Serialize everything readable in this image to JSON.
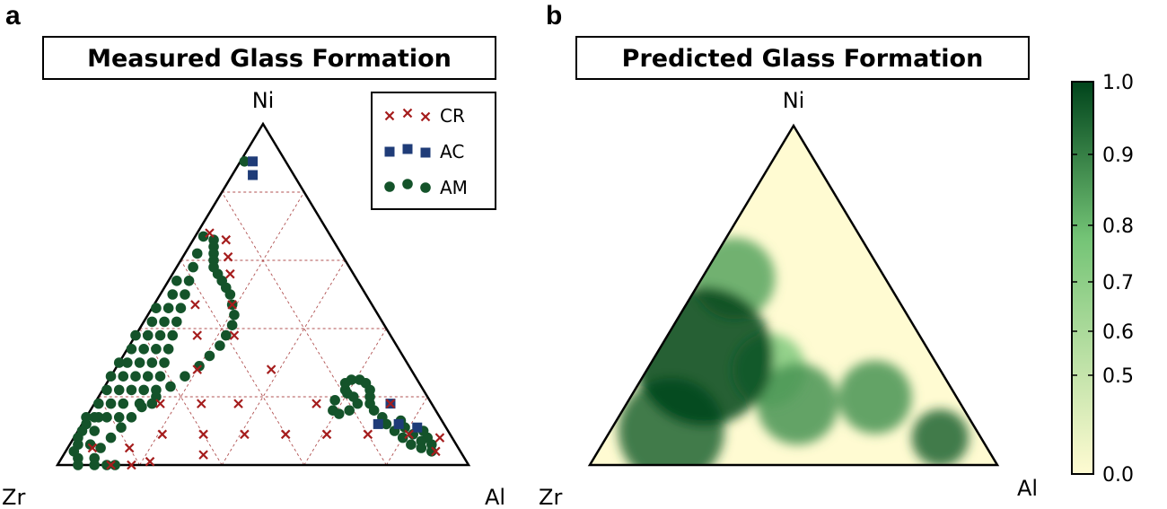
{
  "panels": [
    {
      "letter": "a",
      "title": "Measured Glass Formation"
    },
    {
      "letter": "b",
      "title": "Predicted Glass Formation"
    }
  ],
  "vertices": {
    "top": "Ni",
    "left": "Zr",
    "right": "Al"
  },
  "colors": {
    "CR": "#a51d1d",
    "AC": "#1f3c78",
    "AM": "#14532a",
    "scale_low": "#fffbd2",
    "scale_mid": "#74c476",
    "scale_high": "#00441b"
  },
  "chart_data": [
    {
      "type": "scatter",
      "coordinate_system": "ternary",
      "components": [
        "Ni",
        "Al",
        "Zr"
      ],
      "title": "Measured Glass Formation",
      "legend": {
        "placement": "top-right",
        "entries": [
          "CR",
          "AC",
          "AM"
        ]
      },
      "grid": true,
      "series": [
        {
          "name": "CR",
          "marker": "x",
          "points": [
            {
              "Ni": 0.68,
              "Al": 0.03
            },
            {
              "Ni": 0.66,
              "Al": 0.08
            },
            {
              "Ni": 0.61,
              "Al": 0.11
            },
            {
              "Ni": 0.56,
              "Al": 0.14
            },
            {
              "Ni": 0.47,
              "Al": 0.1
            },
            {
              "Ni": 0.47,
              "Al": 0.19
            },
            {
              "Ni": 0.38,
              "Al": 0.15
            },
            {
              "Ni": 0.38,
              "Al": 0.24
            },
            {
              "Ni": 0.28,
              "Al": 0.2
            },
            {
              "Ni": 0.28,
              "Al": 0.38
            },
            {
              "Ni": 0.18,
              "Al": 0.16
            },
            {
              "Ni": 0.18,
              "Al": 0.26
            },
            {
              "Ni": 0.18,
              "Al": 0.35
            },
            {
              "Ni": 0.18,
              "Al": 0.54
            },
            {
              "Ni": 0.09,
              "Al": 0.21
            },
            {
              "Ni": 0.09,
              "Al": 0.31
            },
            {
              "Ni": 0.09,
              "Al": 0.41
            },
            {
              "Ni": 0.09,
              "Al": 0.51
            },
            {
              "Ni": 0.09,
              "Al": 0.61
            },
            {
              "Ni": 0.09,
              "Al": 0.81
            },
            {
              "Ni": 0.05,
              "Al": 0.06
            },
            {
              "Ni": 0.05,
              "Al": 0.15
            },
            {
              "Ni": 0.03,
              "Al": 0.34
            },
            {
              "Ni": 0.01,
              "Al": 0.22
            },
            {
              "Ni": 0.0,
              "Al": 0.13
            },
            {
              "Ni": 0.0,
              "Al": 0.18
            },
            {
              "Ni": 0.18,
              "Al": 0.72
            },
            {
              "Ni": 0.09,
              "Al": 0.71
            },
            {
              "Ni": 0.04,
              "Al": 0.9
            },
            {
              "Ni": 0.08,
              "Al": 0.89
            }
          ]
        },
        {
          "name": "AC",
          "marker": "square",
          "points": [
            {
              "Ni": 0.89,
              "Al": 0.03
            },
            {
              "Ni": 0.85,
              "Al": 0.05
            },
            {
              "Ni": 0.18,
              "Al": 0.72
            },
            {
              "Ni": 0.12,
              "Al": 0.72
            },
            {
              "Ni": 0.12,
              "Al": 0.77
            },
            {
              "Ni": 0.11,
              "Al": 0.82
            }
          ]
        },
        {
          "name": "AM",
          "marker": "circle",
          "points": [
            {
              "Ni": 0.89,
              "Al": 0.01
            },
            {
              "Ni": 0.67,
              "Al": 0.02
            },
            {
              "Ni": 0.66,
              "Al": 0.05
            },
            {
              "Ni": 0.64,
              "Al": 0.06
            },
            {
              "Ni": 0.62,
              "Al": 0.07
            },
            {
              "Ni": 0.6,
              "Al": 0.08
            },
            {
              "Ni": 0.58,
              "Al": 0.09
            },
            {
              "Ni": 0.56,
              "Al": 0.11
            },
            {
              "Ni": 0.54,
              "Al": 0.13
            },
            {
              "Ni": 0.52,
              "Al": 0.15
            },
            {
              "Ni": 0.5,
              "Al": 0.17
            },
            {
              "Ni": 0.47,
              "Al": 0.19
            },
            {
              "Ni": 0.44,
              "Al": 0.21
            },
            {
              "Ni": 0.41,
              "Al": 0.22
            },
            {
              "Ni": 0.38,
              "Al": 0.22
            },
            {
              "Ni": 0.35,
              "Al": 0.22
            },
            {
              "Ni": 0.32,
              "Al": 0.21
            },
            {
              "Ni": 0.29,
              "Al": 0.2
            },
            {
              "Ni": 0.26,
              "Al": 0.18
            },
            {
              "Ni": 0.23,
              "Al": 0.16
            },
            {
              "Ni": 0.2,
              "Al": 0.14
            },
            {
              "Ni": 0.17,
              "Al": 0.12
            },
            {
              "Ni": 0.14,
              "Al": 0.11
            },
            {
              "Ni": 0.11,
              "Al": 0.1
            },
            {
              "Ni": 0.08,
              "Al": 0.09
            },
            {
              "Ni": 0.05,
              "Al": 0.08
            },
            {
              "Ni": 0.02,
              "Al": 0.08
            },
            {
              "Ni": 0.0,
              "Al": 0.09
            },
            {
              "Ni": 0.0,
              "Al": 0.12
            },
            {
              "Ni": 0.0,
              "Al": 0.14
            },
            {
              "Ni": 0.0,
              "Al": 0.05
            },
            {
              "Ni": 0.02,
              "Al": 0.04
            },
            {
              "Ni": 0.04,
              "Al": 0.02
            },
            {
              "Ni": 0.06,
              "Al": 0.02
            },
            {
              "Ni": 0.08,
              "Al": 0.01
            },
            {
              "Ni": 0.1,
              "Al": 0.01
            },
            {
              "Ni": 0.12,
              "Al": 0.01
            },
            {
              "Ni": 0.14,
              "Al": 0.0
            },
            {
              "Ni": 0.62,
              "Al": 0.03
            },
            {
              "Ni": 0.58,
              "Al": 0.04
            },
            {
              "Ni": 0.54,
              "Al": 0.05
            },
            {
              "Ni": 0.5,
              "Al": 0.06
            },
            {
              "Ni": 0.46,
              "Al": 0.07
            },
            {
              "Ni": 0.42,
              "Al": 0.08
            },
            {
              "Ni": 0.38,
              "Al": 0.09
            },
            {
              "Ni": 0.34,
              "Al": 0.1
            },
            {
              "Ni": 0.3,
              "Al": 0.11
            },
            {
              "Ni": 0.26,
              "Al": 0.12
            },
            {
              "Ni": 0.22,
              "Al": 0.13
            },
            {
              "Ni": 0.18,
              "Al": 0.14
            },
            {
              "Ni": 0.54,
              "Al": 0.02
            },
            {
              "Ni": 0.5,
              "Al": 0.03
            },
            {
              "Ni": 0.46,
              "Al": 0.04
            },
            {
              "Ni": 0.42,
              "Al": 0.05
            },
            {
              "Ni": 0.38,
              "Al": 0.06
            },
            {
              "Ni": 0.34,
              "Al": 0.07
            },
            {
              "Ni": 0.3,
              "Al": 0.08
            },
            {
              "Ni": 0.26,
              "Al": 0.09
            },
            {
              "Ni": 0.22,
              "Al": 0.1
            },
            {
              "Ni": 0.18,
              "Al": 0.11
            },
            {
              "Ni": 0.14,
              "Al": 0.08
            },
            {
              "Ni": 0.46,
              "Al": 0.01
            },
            {
              "Ni": 0.42,
              "Al": 0.02
            },
            {
              "Ni": 0.38,
              "Al": 0.03
            },
            {
              "Ni": 0.34,
              "Al": 0.04
            },
            {
              "Ni": 0.3,
              "Al": 0.05
            },
            {
              "Ni": 0.26,
              "Al": 0.06
            },
            {
              "Ni": 0.22,
              "Al": 0.07
            },
            {
              "Ni": 0.18,
              "Al": 0.07
            },
            {
              "Ni": 0.14,
              "Al": 0.05
            },
            {
              "Ni": 0.38,
              "Al": 0.0
            },
            {
              "Ni": 0.34,
              "Al": 0.01
            },
            {
              "Ni": 0.3,
              "Al": 0.02
            },
            {
              "Ni": 0.26,
              "Al": 0.03
            },
            {
              "Ni": 0.22,
              "Al": 0.04
            },
            {
              "Ni": 0.18,
              "Al": 0.04
            },
            {
              "Ni": 0.14,
              "Al": 0.03
            },
            {
              "Ni": 0.1,
              "Al": 0.04
            },
            {
              "Ni": 0.06,
              "Al": 0.05
            },
            {
              "Ni": 0.3,
              "Al": 0.0
            },
            {
              "Ni": 0.26,
              "Al": 0.0
            },
            {
              "Ni": 0.22,
              "Al": 0.01
            },
            {
              "Ni": 0.18,
              "Al": 0.01
            },
            {
              "Ni": 0.14,
              "Al": 0.02
            },
            {
              "Ni": 0.22,
              "Al": 0.59
            },
            {
              "Ni": 0.24,
              "Al": 0.58
            },
            {
              "Ni": 0.25,
              "Al": 0.59
            },
            {
              "Ni": 0.25,
              "Al": 0.61
            },
            {
              "Ni": 0.24,
              "Al": 0.63
            },
            {
              "Ni": 0.22,
              "Al": 0.65
            },
            {
              "Ni": 0.2,
              "Al": 0.66
            },
            {
              "Ni": 0.18,
              "Al": 0.67
            },
            {
              "Ni": 0.16,
              "Al": 0.69
            },
            {
              "Ni": 0.14,
              "Al": 0.72
            },
            {
              "Ni": 0.12,
              "Al": 0.74
            },
            {
              "Ni": 0.1,
              "Al": 0.77
            },
            {
              "Ni": 0.08,
              "Al": 0.8
            },
            {
              "Ni": 0.06,
              "Al": 0.83
            },
            {
              "Ni": 0.05,
              "Al": 0.86
            },
            {
              "Ni": 0.06,
              "Al": 0.88
            },
            {
              "Ni": 0.08,
              "Al": 0.86
            },
            {
              "Ni": 0.1,
              "Al": 0.84
            },
            {
              "Ni": 0.19,
              "Al": 0.58
            },
            {
              "Ni": 0.16,
              "Al": 0.59
            },
            {
              "Ni": 0.15,
              "Al": 0.61
            },
            {
              "Ni": 0.16,
              "Al": 0.63
            },
            {
              "Ni": 0.18,
              "Al": 0.64
            },
            {
              "Ni": 0.2,
              "Al": 0.62
            },
            {
              "Ni": 0.21,
              "Al": 0.6
            },
            {
              "Ni": 0.13,
              "Al": 0.77
            },
            {
              "Ni": 0.11,
              "Al": 0.79
            },
            {
              "Ni": 0.07,
              "Al": 0.85
            },
            {
              "Ni": 0.09,
              "Al": 0.82
            },
            {
              "Ni": 0.04,
              "Al": 0.89
            }
          ]
        }
      ]
    },
    {
      "type": "heatmap",
      "coordinate_system": "ternary",
      "components": [
        "Ni",
        "Al",
        "Zr"
      ],
      "title": "Predicted Glass Formation",
      "colorbar": {
        "ticks": [
          "1.0",
          "0.9",
          "0.8",
          "0.7",
          "0.6",
          "0.5",
          "0.0"
        ],
        "tick_values": [
          1.0,
          0.9,
          0.8,
          0.7,
          0.6,
          0.5,
          0.0
        ],
        "range": [
          0.0,
          1.0
        ]
      },
      "hotspots": [
        {
          "Ni": 0.32,
          "Al": 0.12,
          "level": 1.0,
          "spread": 0.17
        },
        {
          "Ni": 0.1,
          "Al": 0.15,
          "level": 0.9,
          "spread": 0.13
        },
        {
          "Ni": 0.55,
          "Al": 0.08,
          "level": 0.7,
          "spread": 0.1
        },
        {
          "Ni": 0.18,
          "Al": 0.42,
          "level": 0.75,
          "spread": 0.1
        },
        {
          "Ni": 0.2,
          "Al": 0.6,
          "level": 0.75,
          "spread": 0.09
        },
        {
          "Ni": 0.08,
          "Al": 0.82,
          "level": 0.9,
          "spread": 0.07
        },
        {
          "Ni": 0.28,
          "Al": 0.3,
          "level": 0.55,
          "spread": 0.09
        }
      ]
    }
  ]
}
